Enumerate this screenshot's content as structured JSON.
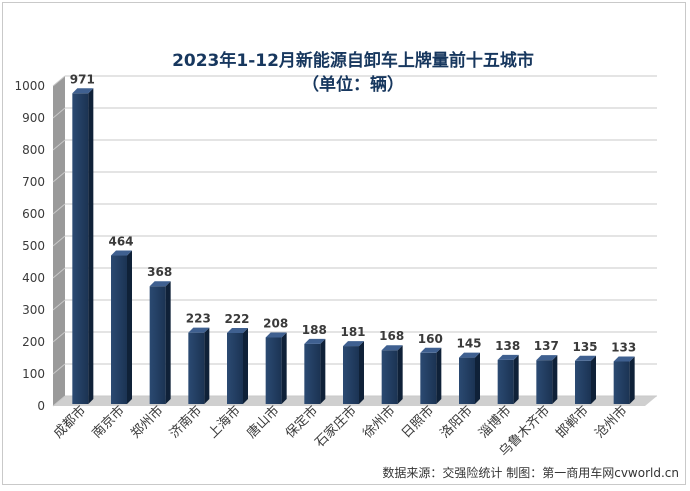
{
  "chart_data": {
    "type": "bar",
    "title": "2023年1-12月新能源自卸车上牌量前十五城市",
    "subtitle": "（单位：辆）",
    "categories": [
      "成都市",
      "南京市",
      "郑州市",
      "济南市",
      "上海市",
      "唐山市",
      "保定市",
      "石家庄市",
      "徐州市",
      "日照市",
      "洛阳市",
      "淄博市",
      "乌鲁木齐市",
      "邯郸市",
      "沧州市"
    ],
    "values": [
      971,
      464,
      368,
      223,
      222,
      208,
      188,
      181,
      168,
      160,
      145,
      138,
      137,
      135,
      133
    ],
    "ylim": [
      0,
      1000
    ],
    "yticks": [
      "0",
      "100",
      "200",
      "300",
      "400",
      "500",
      "600",
      "700",
      "800",
      "900",
      "1000"
    ],
    "grid": true,
    "bar_color": "#1f3a5f",
    "source": "数据来源：交强险统计 制图：第一商用车网cvworld.cn"
  }
}
